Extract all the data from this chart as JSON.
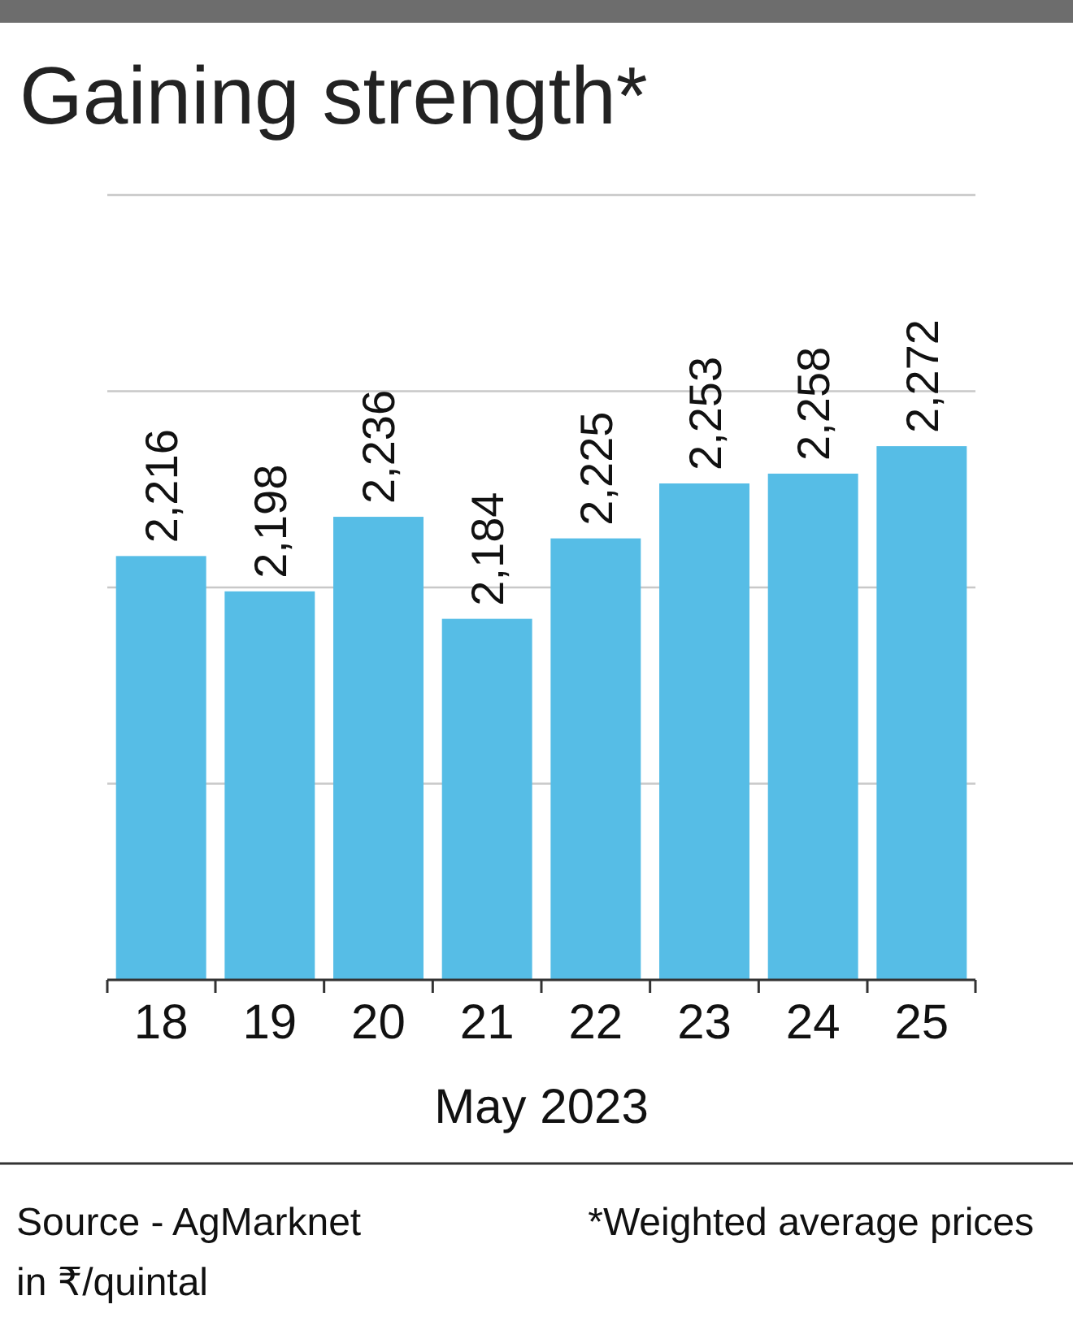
{
  "chart_data": {
    "type": "bar",
    "title": "Gaining strength*",
    "xlabel": "May 2023",
    "categories": [
      "18",
      "19",
      "20",
      "21",
      "22",
      "23",
      "24",
      "25"
    ],
    "values": [
      2216,
      2198,
      2236,
      2184,
      2225,
      2253,
      2258,
      2272
    ],
    "color": "#56bde6",
    "value_labels": [
      "2,216",
      "2,198",
      "2,236",
      "2,184",
      "2,225",
      "2,253",
      "2,258",
      "2,272"
    ],
    "ylim": [
      2000,
      2400
    ],
    "tick_labels": "x",
    "grid": "y",
    "annotations": [
      "Source - AgMarknet",
      "*Weighted average prices",
      "in ₹/quintal"
    ]
  }
}
